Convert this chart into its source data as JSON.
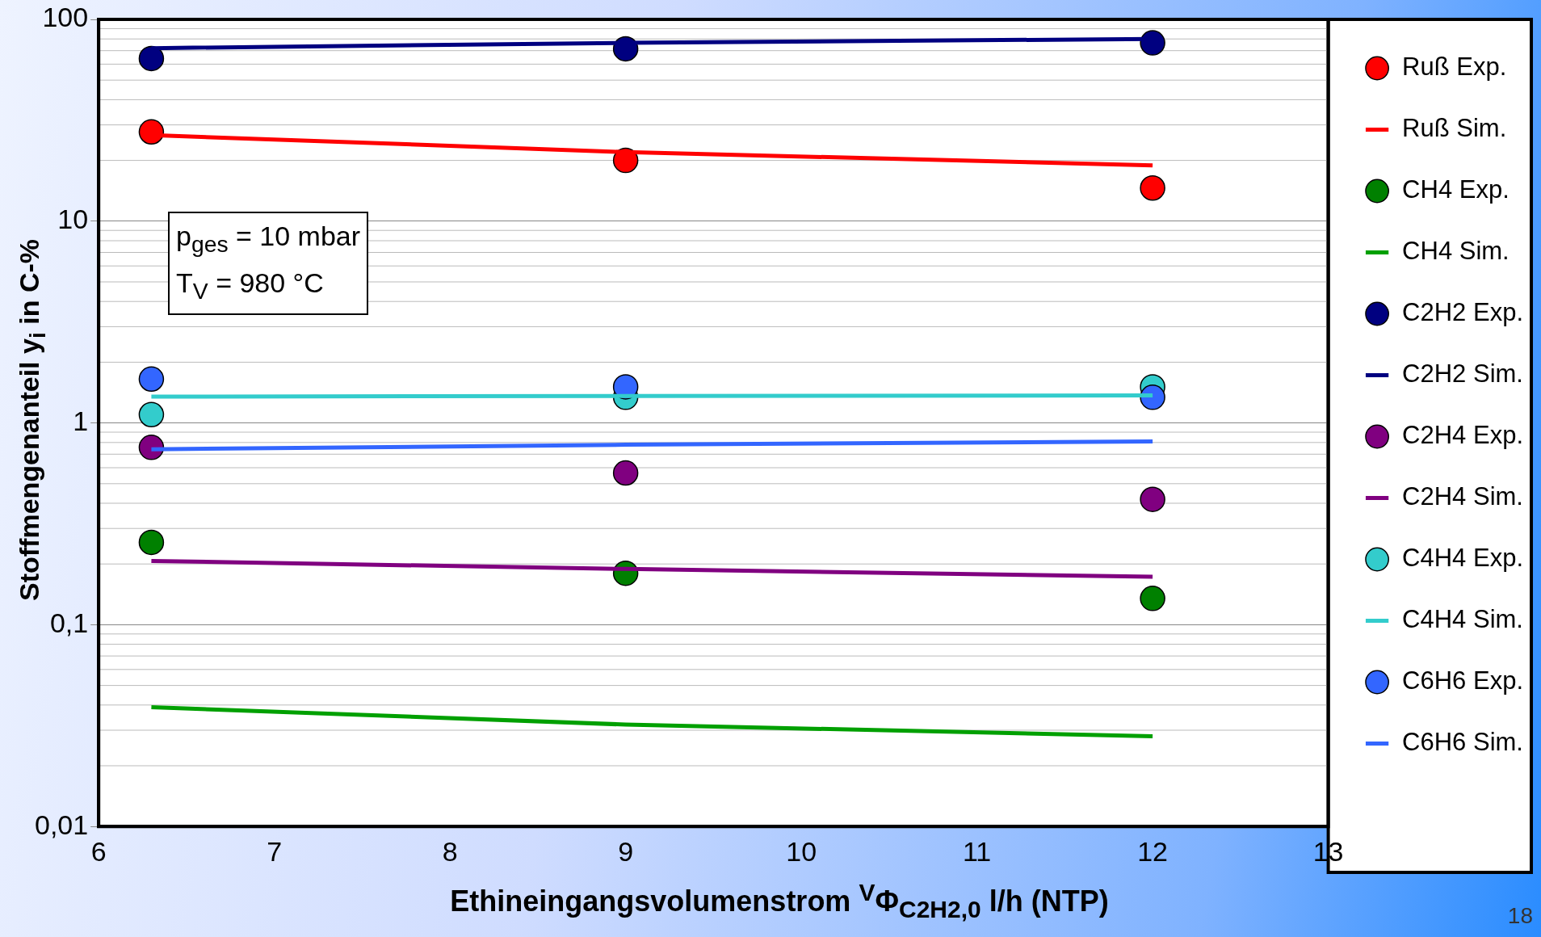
{
  "chart_data": {
    "type": "line",
    "xlabel": "Ethineingangsvolumenstrom $^{V}$Φ$_{C2H2,0}$ l/h (NTP)",
    "ylabel": "Stoffmengenanteil y$_{i}$ in C-%",
    "x": [
      6.3,
      9,
      12
    ],
    "xlim": [
      6,
      13
    ],
    "xticks": [
      6,
      7,
      8,
      9,
      10,
      11,
      12,
      13
    ],
    "ylim": [
      0.01,
      100
    ],
    "yticks": [
      {
        "value": 0.01,
        "label": "0,01"
      },
      {
        "value": 0.1,
        "label": "0,1"
      },
      1,
      10,
      100
    ],
    "log": "y",
    "grid": "y",
    "legend": "right",
    "series": [
      {
        "name": "Ruß Exp.",
        "type": "scatter",
        "marker": "circle",
        "color": "#ff0000",
        "values": [
          27.7,
          20,
          14.6
        ]
      },
      {
        "name": "Ruß Sim.",
        "type": "line",
        "marker": "none",
        "color": "#ff0000",
        "values": [
          26.7,
          22,
          18.9
        ]
      },
      {
        "name": "CH4 Exp.",
        "type": "scatter",
        "marker": "circle",
        "color": "#008000",
        "values": [
          0.256,
          0.18,
          0.135
        ]
      },
      {
        "name": "CH4 Sim.",
        "type": "line",
        "marker": "none",
        "color": "#00a000",
        "values": [
          0.039,
          0.032,
          0.028
        ]
      },
      {
        "name": "C2H2 Exp.",
        "type": "scatter",
        "marker": "circle",
        "color": "#000080",
        "values": [
          64,
          71.5,
          76.5
        ]
      },
      {
        "name": "C2H2 Sim.",
        "type": "line",
        "marker": "none",
        "color": "#000080",
        "values": [
          72,
          76.5,
          80
        ]
      },
      {
        "name": "C2H4 Exp.",
        "type": "scatter",
        "marker": "circle",
        "color": "#800080",
        "values": [
          0.757,
          0.565,
          0.418
        ]
      },
      {
        "name": "C2H4 Sim.",
        "type": "line",
        "marker": "none",
        "color": "#800080",
        "values": [
          0.207,
          0.189,
          0.173
        ]
      },
      {
        "name": "C4H4 Exp.",
        "type": "scatter",
        "marker": "circle",
        "color": "#33cccc",
        "values": [
          1.1,
          1.34,
          1.51
        ]
      },
      {
        "name": "C4H4 Sim.",
        "type": "line",
        "marker": "none",
        "color": "#33cccc",
        "values": [
          1.35,
          1.36,
          1.37
        ]
      },
      {
        "name": "C6H6 Exp.",
        "type": "scatter",
        "marker": "circle",
        "color": "#3366ff",
        "values": [
          1.65,
          1.51,
          1.34
        ]
      },
      {
        "name": "C6H6 Sim.",
        "type": "line",
        "marker": "none",
        "color": "#3366ff",
        "values": [
          0.74,
          0.78,
          0.81
        ]
      }
    ],
    "annotations": [
      "p$_{ges}$ = 10 mbar",
      "T$_{V}$ = 980 °C",
      "18"
    ]
  }
}
